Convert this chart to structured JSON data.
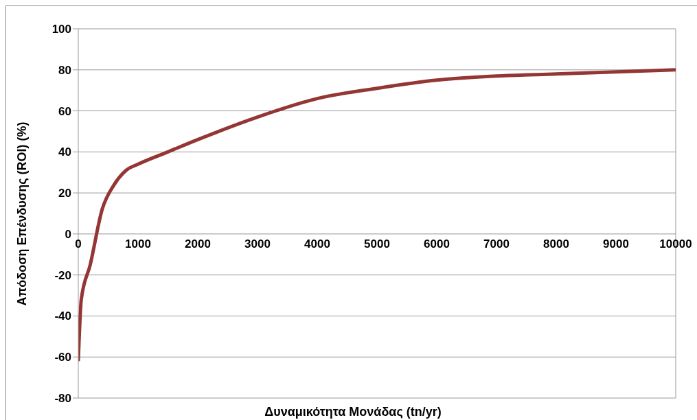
{
  "chart_data": {
    "type": "line",
    "xlabel": "Δυναμικότητα Μονάδας (tn/yr)",
    "ylabel": "Απόδοση Επένδυσης (ROI) (%)",
    "x": [
      0,
      50,
      200,
      400,
      600,
      800,
      1000,
      1500,
      2000,
      3000,
      4000,
      5000,
      6000,
      7000,
      8000,
      9000,
      10000
    ],
    "series": [
      {
        "color": "#943634",
        "values": [
          -62,
          -32,
          -15,
          12,
          24,
          31,
          34,
          40,
          46,
          57,
          66,
          71,
          75,
          77,
          78,
          79,
          80
        ]
      }
    ],
    "xlim": [
      0,
      10000
    ],
    "xticks": [
      0,
      1000,
      2000,
      3000,
      4000,
      5000,
      6000,
      7000,
      8000,
      9000,
      10000
    ],
    "ylim": [
      -80,
      100
    ],
    "yticks": [
      -80,
      -60,
      -40,
      -20,
      0,
      20,
      40,
      60,
      80,
      100
    ],
    "grid": "y",
    "legend": false,
    "marker": "none",
    "line_style": "solid"
  }
}
